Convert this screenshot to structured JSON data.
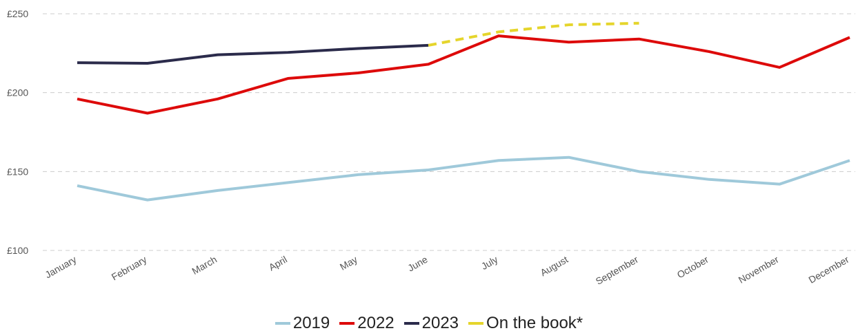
{
  "chart_data": {
    "type": "line",
    "categories": [
      "January",
      "February",
      "March",
      "April",
      "May",
      "June",
      "July",
      "August",
      "September",
      "October",
      "November",
      "December"
    ],
    "series": [
      {
        "name": "2019",
        "color": "#9fc9da",
        "values": [
          141,
          132,
          138,
          143,
          148,
          151,
          157,
          159,
          150,
          145,
          142,
          157
        ]
      },
      {
        "name": "2022",
        "color": "#dd0a0a",
        "values": [
          196,
          187,
          196,
          209,
          212.5,
          218,
          236,
          232,
          234,
          226,
          216,
          235
        ]
      },
      {
        "name": "2023",
        "color": "#2b2b4b",
        "values": [
          219,
          218.6,
          224,
          225.5,
          228,
          230,
          null,
          null,
          null,
          null,
          null,
          null
        ]
      },
      {
        "name": "On the book*",
        "color": "#e5d52c",
        "dashed": true,
        "values": [
          null,
          null,
          null,
          null,
          null,
          230,
          238.5,
          243,
          244,
          null,
          null,
          null
        ]
      }
    ],
    "ylim": [
      100,
      250
    ],
    "yticks": [
      {
        "value": 100,
        "label": "£100"
      },
      {
        "value": 150,
        "label": "£150"
      },
      {
        "value": 200,
        "label": "£200"
      },
      {
        "value": 250,
        "label": "£250"
      }
    ],
    "grid": true,
    "legend": "bottom"
  }
}
